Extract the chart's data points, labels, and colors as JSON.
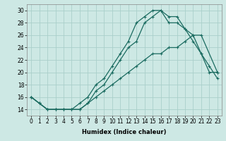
{
  "xlabel": "Humidex (Indice chaleur)",
  "xlim": [
    -0.5,
    23.5
  ],
  "ylim": [
    13,
    31
  ],
  "xticks": [
    0,
    1,
    2,
    3,
    4,
    5,
    6,
    7,
    8,
    9,
    10,
    11,
    12,
    13,
    14,
    15,
    16,
    17,
    18,
    19,
    20,
    21,
    22,
    23
  ],
  "yticks": [
    14,
    16,
    18,
    20,
    22,
    24,
    26,
    28,
    30
  ],
  "background_color": "#cde8e4",
  "grid_color": "#aacfca",
  "line_color": "#1a6b60",
  "line1_y": [
    16,
    15,
    14,
    14,
    14,
    14,
    15,
    16,
    18,
    19,
    21,
    23,
    25,
    28,
    29,
    30,
    30,
    29,
    29,
    27,
    26,
    23,
    20,
    20
  ],
  "line2_y": [
    16,
    15,
    14,
    14,
    14,
    14,
    14,
    15,
    17,
    18,
    20,
    22,
    24,
    25,
    28,
    29,
    30,
    28,
    28,
    27,
    25,
    23,
    21,
    19
  ],
  "line3_y": [
    16,
    15,
    14,
    14,
    14,
    14,
    14,
    15,
    16,
    17,
    18,
    19,
    20,
    21,
    22,
    23,
    23,
    24,
    24,
    25,
    26,
    26,
    null,
    20
  ],
  "xlabel_fontsize": 6,
  "tick_fontsize": 5.5
}
